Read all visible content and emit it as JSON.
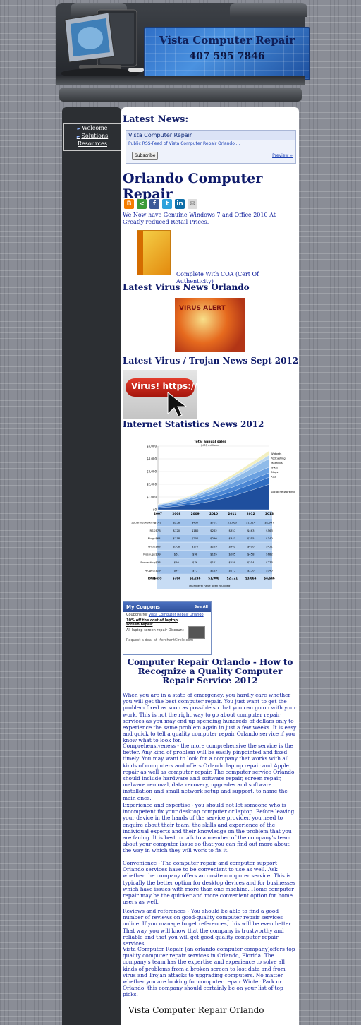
{
  "header": {
    "title": "Vista Computer Repair",
    "phone": "407 595 7846"
  },
  "menu": {
    "items": [
      "Welcome",
      "Solutions",
      "Resources"
    ]
  },
  "news": {
    "heading": "Latest News:",
    "feed_title": "Vista Computer Repair",
    "feed_subtitle": "Public RSS-Feed of Vista Computer Repair Orlando....",
    "subscribe": "Subscribe",
    "preview": "Preview »"
  },
  "main": {
    "title": "Orlando Computer Repair",
    "share_icons": [
      "blogger-icon",
      "share-icon",
      "facebook-icon",
      "twitter-icon",
      "linkedin-icon",
      "email-icon"
    ],
    "intro": "We Now have Genuine Windows 7 and Office 2010 At Greatly reduced Retail Prices.",
    "coa": "Complete With COA (Cert Of Authenticity)",
    "virus_heading": "Latest Virus News Orlando",
    "virus_alert_text": "VIRUS ALERT",
    "trojan_heading": "Latest Virus / Trojan News Sept 2012",
    "trojan_image_text": "Virus! https://",
    "stats_heading": "Internet  Statistics News 2012"
  },
  "chart_data": {
    "type": "area",
    "title": "Total annual sales",
    "subtitle": "(US$ millions)",
    "x": [
      2007,
      2008,
      2009,
      2010,
      2011,
      2012,
      2013
    ],
    "ylim": [
      0,
      5000
    ],
    "yticks": [
      "$0",
      "$1,000",
      "$2,000",
      "$3,000",
      "$4,000",
      "$5,000"
    ],
    "series": [
      {
        "name": "Social networking",
        "values": [
          149,
          258,
          437,
          701,
          1063,
          1514,
          1997
        ],
        "labels": [
          "$149",
          "$258",
          "$437",
          "$701",
          "$1,063",
          "$1,514",
          "$1,997"
        ]
      },
      {
        "name": "RSS",
        "values": [
          78,
          120,
          182,
          262,
          357,
          463,
          563
        ],
        "labels": [
          "$78",
          "$120",
          "$182",
          "$262",
          "$357",
          "$463",
          "$563"
        ]
      },
      {
        "name": "Blogs",
        "values": [
          64,
          118,
          201,
          290,
          341,
          355,
          340
        ],
        "labels": [
          "$64",
          "$118",
          "$201",
          "$290",
          "$341",
          "$355",
          "$340"
        ]
      },
      {
        "name": "Wikis",
        "values": [
          63,
          108,
          177,
          259,
          342,
          410,
          451
        ],
        "labels": [
          "$63",
          "$108",
          "$177",
          "$259",
          "$342",
          "$410",
          "$451"
        ]
      },
      {
        "name": "Mashups",
        "values": [
          39,
          61,
          98,
          165,
          285,
          458,
          682
        ],
        "labels": [
          "$39",
          "$61",
          "$98",
          "$165",
          "$285",
          "$458",
          "$682"
        ]
      },
      {
        "name": "Podcasting",
        "values": [
          33,
          50,
          76,
          111,
          159,
          214,
          273
        ],
        "labels": [
          "$33",
          "$50",
          "$76",
          "$111",
          "$159",
          "$214",
          "$273"
        ]
      },
      {
        "name": "Widgets",
        "values": [
          29,
          47,
          75,
          119,
          175,
          250,
          340
        ],
        "labels": [
          "$29",
          "$47",
          "$75",
          "$119",
          "$175",
          "$250",
          "$340"
        ]
      }
    ],
    "totals": [
      "$455",
      "$764",
      "$1,246",
      "$1,906",
      "$2,721",
      "$3,664",
      "$4,646"
    ],
    "total_label": "Total",
    "note": "(numbers) have been rounded)",
    "legend": "right"
  },
  "coupons": {
    "title": "My Coupons",
    "see_all": "See All",
    "for_label": "Coupons for",
    "for_link": "Vista Computer Repair Orlando",
    "deal_title": "10% off the cost of laptop screen repair",
    "deal_sub": "All laptop screen repair Discount",
    "request": "Request a deal at MerchantCircle.com"
  },
  "article": {
    "heading": "Computer Repair Orlando - How to Recognize a Quality Computer Repair Service 2012",
    "paragraphs": [
      "When you are in a state of emergency, you hardly care whether you will get the best computer repair. You just want to get the problem fixed as soon as possible so that you can go on with your work. This is not the right way to go about computer repair services as you may end up spending hundreds of dollars only to experience the same problem again in just a few weeks. It is easy and quick to tell a quality computer repair Orlando service if you know what to look for.",
      "Comprehensiveness - the more comprehensive the service is the better. Any kind of problem will be easily pinpointed and fixed timely. You may want to look for a company that works with all kinds of computers and offers Orlando laptop repair and Apple repair as well as computer repair. The computer service Orlando should include hardware and software repair, screen repair, malware removal, data recovery, upgrades and software installation and small network setup and support, to name the main ones.",
      "Experience and expertise - you should not let someone who is incompetent fix your desktop computer or laptop. Before leaving your device in the hands of the service provider, you need to enquire about their team, the skills and experience of the individual experts and their knowledge on the problem that you are facing. It is best to talk to a member of the company's team about your computer issue so that you can find out more about the way in which they will work to fix it.",
      "Convenience - The computer repair and computer support Orlando services have to be convenient to use as well. Ask whether the company offers an onsite computer service. This is typically the better option for desktop devices and for businesses which have issues with more than one machine. Home computer repair may be the quicker and more convenient option for home users as well.",
      "Reviews and references - You should be able to find a good number of reviews on good-quality computer repair services online. If you manage to get references, this will be even better. That way, you will know that the company is trustworthy and reliable and that you will get good quality computer repair services.",
      "Vista Computer Repair (an orlando computer company)offers top quality computer repair services in Orlando, Florida. The company's team has the expertise and experience to solve all kinds of problems from a broken screen to lost data and from virus and Trojan attacks to upgrading computers. No matter whether you are looking for computer repair Winter Park or Orlando, this company should certainly be on your list of top picks."
    ]
  },
  "footer": {
    "title": "Vista Computer Repair Orlando"
  }
}
